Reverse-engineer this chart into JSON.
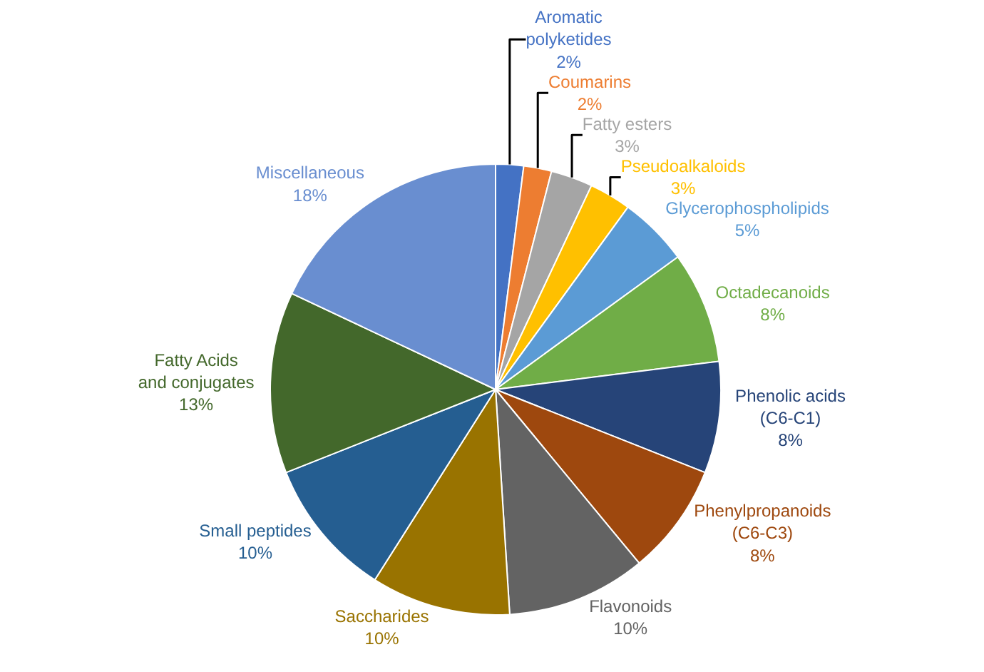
{
  "chart_data": {
    "type": "pie",
    "categories": [
      "Aromatic polyketides",
      "Coumarins",
      "Fatty esters",
      "Pseudoalkaloids",
      "Glycerophospholipids",
      "Octadecanoids",
      "Phenolic acids (C6-C1)",
      "Phenylpropanoids (C6-C3)",
      "Flavonoids",
      "Saccharides",
      "Small peptides",
      "Fatty Acids and conjugates",
      "Miscellaneous"
    ],
    "values": [
      2,
      2,
      3,
      3,
      5,
      8,
      8,
      8,
      10,
      10,
      10,
      13,
      18
    ],
    "value_labels": [
      "2%",
      "2%",
      "3%",
      "3%",
      "5%",
      "8%",
      "8%",
      "8%",
      "10%",
      "10%",
      "10%",
      "13%",
      "18%"
    ],
    "colors": [
      "#4472c4",
      "#ed7d31",
      "#a5a5a5",
      "#ffc000",
      "#5b9bd5",
      "#70ad47",
      "#264478",
      "#9e480e",
      "#636363",
      "#997300",
      "#255e91",
      "#43682b",
      "#698ed0"
    ],
    "legend": false
  }
}
